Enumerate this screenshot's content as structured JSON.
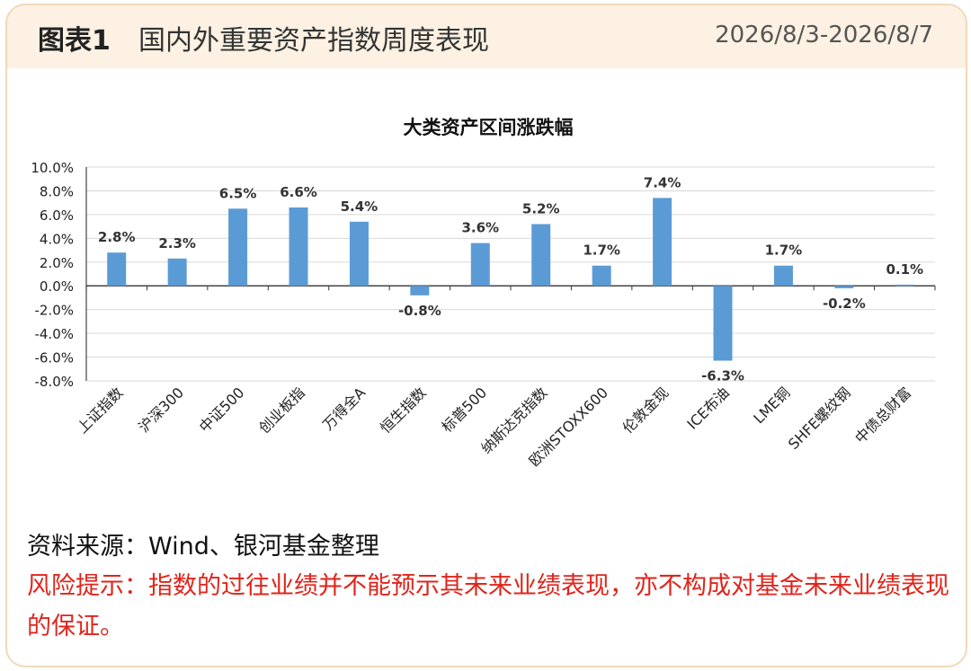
{
  "header": {
    "figure_label": "图表1",
    "title": "国内外重要资产指数周度表现",
    "date_range": "2026/8/3-2026/8/7"
  },
  "chart_data": {
    "type": "bar",
    "title": "大类资产区间涨跌幅",
    "categories": [
      "上证指数",
      "沪深300",
      "中证500",
      "创业板指",
      "万得全A",
      "恒生指数",
      "标普500",
      "纳斯达克指数",
      "欧洲STOXX600",
      "伦敦金现",
      "ICE布油",
      "LME铜",
      "SHFE螺纹钢",
      "中债总财富"
    ],
    "values": [
      2.8,
      2.3,
      6.5,
      6.6,
      5.4,
      -0.8,
      3.6,
      5.2,
      1.7,
      7.4,
      -6.3,
      1.7,
      -0.2,
      0.1
    ],
    "data_labels": [
      "2.8%",
      "2.3%",
      "6.5%",
      "6.6%",
      "5.4%",
      "-0.8%",
      "3.6%",
      "5.2%",
      "1.7%",
      "7.4%",
      "-6.3%",
      "1.7%",
      "-0.2%",
      "0.1%"
    ],
    "y_ticks": [
      "10.0%",
      "8.0%",
      "6.0%",
      "4.0%",
      "2.0%",
      "0.0%",
      "-2.0%",
      "-4.0%",
      "-6.0%",
      "-8.0%"
    ],
    "ylim": [
      -8,
      10
    ],
    "grid": true,
    "legend": "none",
    "bar_color": "#5b9bd5"
  },
  "footer": {
    "source": "资料来源：Wind、银河基金整理",
    "risk": "风险提示：指数的过往业绩并不能预示其未来业绩表现，亦不构成对基金未来业绩表现的保证。"
  }
}
